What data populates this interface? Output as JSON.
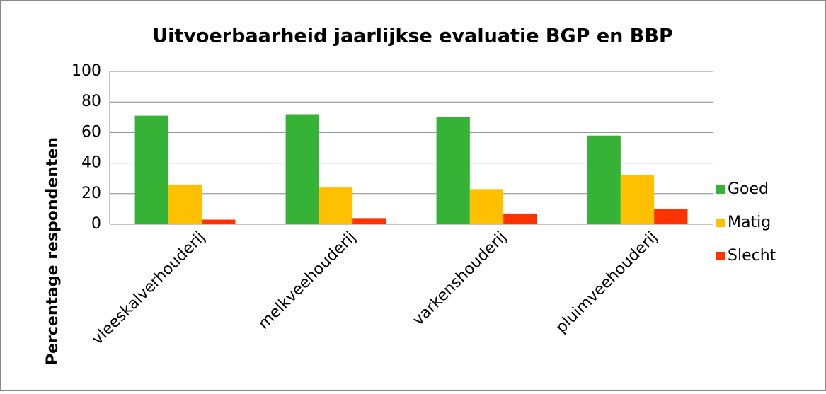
{
  "chart_data": {
    "type": "bar",
    "title": "Uitvoerbaarheid jaarlijkse evaluatie BGP en BBP",
    "y_label": "Percentage respondenten",
    "categories": [
      "vleeskalverhouderij",
      "melkveehouderij",
      "varkenshouderij",
      "pluimveehouderij"
    ],
    "series": [
      {
        "name": "Goed",
        "color": "#36b336",
        "values": [
          71,
          72,
          70,
          58
        ]
      },
      {
        "name": "Matig",
        "color": "#ffc000",
        "values": [
          26,
          24,
          23,
          32
        ]
      },
      {
        "name": "Slecht",
        "color": "#ff3300",
        "values": [
          3,
          4,
          7,
          10
        ]
      }
    ],
    "ylim": [
      0,
      100
    ],
    "yticks": [
      0,
      20,
      40,
      60,
      80,
      100
    ],
    "grid": true,
    "legend": "right"
  }
}
